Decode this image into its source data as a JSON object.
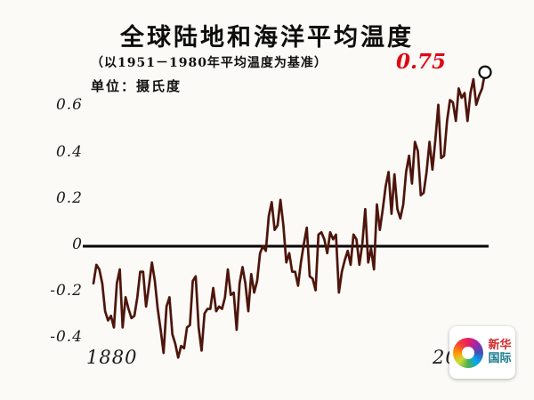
{
  "title": "全球陆地和海洋平均温度",
  "subtitle": "（以1951－1980年平均温度为基准）",
  "unit_label": "单位：摄氏度",
  "endpoint_label": "0.75",
  "colors": {
    "line": "#4d150b",
    "zero_line": "#000000",
    "endpoint_text": "#e00713",
    "marker_fill": "#ffffff",
    "marker_stroke": "#000000"
  },
  "watermark": {
    "line1": "新华",
    "line2": "国际"
  },
  "chart_data": {
    "type": "line",
    "title": "全球陆地和海洋平均温度",
    "subtitle": "（以1951－1980年平均温度为基准）",
    "ylabel": "摄氏度",
    "x_start": 1880,
    "x_end": 2014,
    "x_ticks": [
      "1880",
      "2014"
    ],
    "y_ticks": [
      "0.6",
      "0.4",
      "0.2",
      "0",
      "-0.2",
      "-0.4"
    ],
    "y_tick_values": [
      0.6,
      0.4,
      0.2,
      0,
      -0.2,
      -0.4
    ],
    "ylim": [
      -0.55,
      0.85
    ],
    "grid": false,
    "endpoint": {
      "year": 2014,
      "value": 0.75
    },
    "series": [
      {
        "name": "全球陆地和海洋平均温度距平",
        "values": [
          -0.16,
          -0.08,
          -0.1,
          -0.16,
          -0.28,
          -0.32,
          -0.3,
          -0.35,
          -0.16,
          -0.1,
          -0.35,
          -0.22,
          -0.27,
          -0.31,
          -0.3,
          -0.22,
          -0.11,
          -0.11,
          -0.26,
          -0.17,
          -0.07,
          -0.15,
          -0.27,
          -0.36,
          -0.46,
          -0.26,
          -0.22,
          -0.38,
          -0.42,
          -0.48,
          -0.43,
          -0.44,
          -0.35,
          -0.34,
          -0.15,
          -0.13,
          -0.35,
          -0.45,
          -0.29,
          -0.27,
          -0.27,
          -0.18,
          -0.28,
          -0.26,
          -0.27,
          -0.22,
          -0.1,
          -0.21,
          -0.2,
          -0.36,
          -0.16,
          -0.09,
          -0.16,
          -0.28,
          -0.12,
          -0.2,
          -0.15,
          -0.03,
          0.0,
          -0.02,
          0.13,
          0.19,
          0.07,
          0.09,
          0.2,
          0.09,
          -0.07,
          -0.03,
          -0.11,
          -0.11,
          -0.17,
          -0.07,
          0.01,
          0.08,
          -0.13,
          -0.14,
          -0.19,
          0.05,
          0.06,
          0.03,
          -0.03,
          0.06,
          0.03,
          0.05,
          -0.2,
          -0.11,
          -0.06,
          -0.02,
          -0.08,
          0.05,
          0.03,
          -0.08,
          0.01,
          0.16,
          -0.07,
          -0.01,
          -0.1,
          0.18,
          0.07,
          0.16,
          0.26,
          0.32,
          0.14,
          0.31,
          0.16,
          0.12,
          0.18,
          0.32,
          0.39,
          0.27,
          0.45,
          0.41,
          0.22,
          0.23,
          0.32,
          0.45,
          0.33,
          0.46,
          0.61,
          0.38,
          0.39,
          0.54,
          0.63,
          0.62,
          0.54,
          0.68,
          0.64,
          0.66,
          0.54,
          0.66,
          0.72,
          0.61,
          0.65,
          0.68,
          0.75
        ]
      }
    ]
  }
}
